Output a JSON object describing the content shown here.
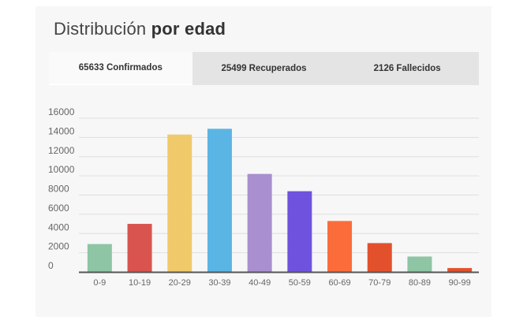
{
  "header": {
    "title_regular": "Distribución ",
    "title_bold": "por edad"
  },
  "tabs": [
    {
      "label": "65633 Confirmados",
      "active": true
    },
    {
      "label": "25499 Recuperados",
      "active": false
    },
    {
      "label": "2126 Fallecidos",
      "active": false
    }
  ],
  "chart_data": {
    "type": "bar",
    "categories": [
      "0-9",
      "10-19",
      "20-29",
      "30-39",
      "40-49",
      "50-59",
      "60-69",
      "70-79",
      "80-89",
      "90-99"
    ],
    "values": [
      2900,
      5000,
      14300,
      14900,
      10200,
      8400,
      5300,
      3000,
      1600,
      400
    ],
    "colors": [
      "#8ec5a4",
      "#d9534f",
      "#f0c96a",
      "#5bb5e4",
      "#a98fcf",
      "#6f53de",
      "#fb6c3a",
      "#e2512b",
      "#8ec5a4",
      "#e2512b"
    ],
    "ylim": [
      0,
      16000
    ],
    "yticks": [
      0,
      2000,
      4000,
      6000,
      8000,
      10000,
      12000,
      14000,
      16000
    ],
    "ytick_labels": [
      "0",
      "2000",
      "4000",
      "6000",
      "8000",
      "10000",
      "12000",
      "14000",
      "16000"
    ],
    "grid": true
  }
}
